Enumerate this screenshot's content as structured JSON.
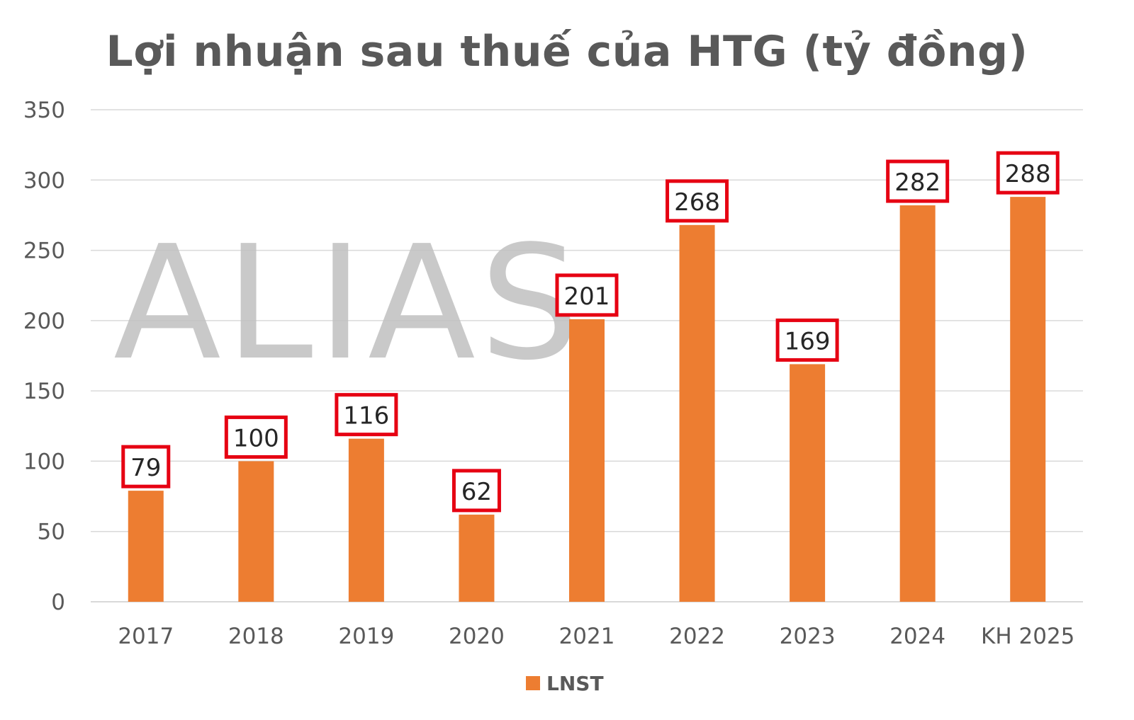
{
  "title": "Lợi nhuận sau thuế của HTG (tỷ đồng)",
  "watermark": "ALIAS",
  "colors": {
    "bar": "#ED7D31",
    "label_box": "#E60012",
    "grid": "#D9D9D9",
    "axis_text": "#595959",
    "watermark": "#C0C0C0"
  },
  "chart_data": {
    "type": "bar",
    "title": "Lợi nhuận sau thuế của HTG (tỷ đồng)",
    "categories": [
      "2017",
      "2018",
      "2019",
      "2020",
      "2021",
      "2022",
      "2023",
      "2024",
      "KH 2025"
    ],
    "series": [
      {
        "name": "LNST",
        "values": [
          79,
          100,
          116,
          62,
          201,
          268,
          169,
          282,
          288
        ]
      }
    ],
    "xlabel": "",
    "ylabel": "",
    "ylim": [
      0,
      350
    ],
    "yticks": [
      "0",
      "50",
      "100",
      "150",
      "200",
      "250",
      "300",
      "350"
    ],
    "grid": true,
    "data_labels": true,
    "legend_position": "bottom"
  }
}
